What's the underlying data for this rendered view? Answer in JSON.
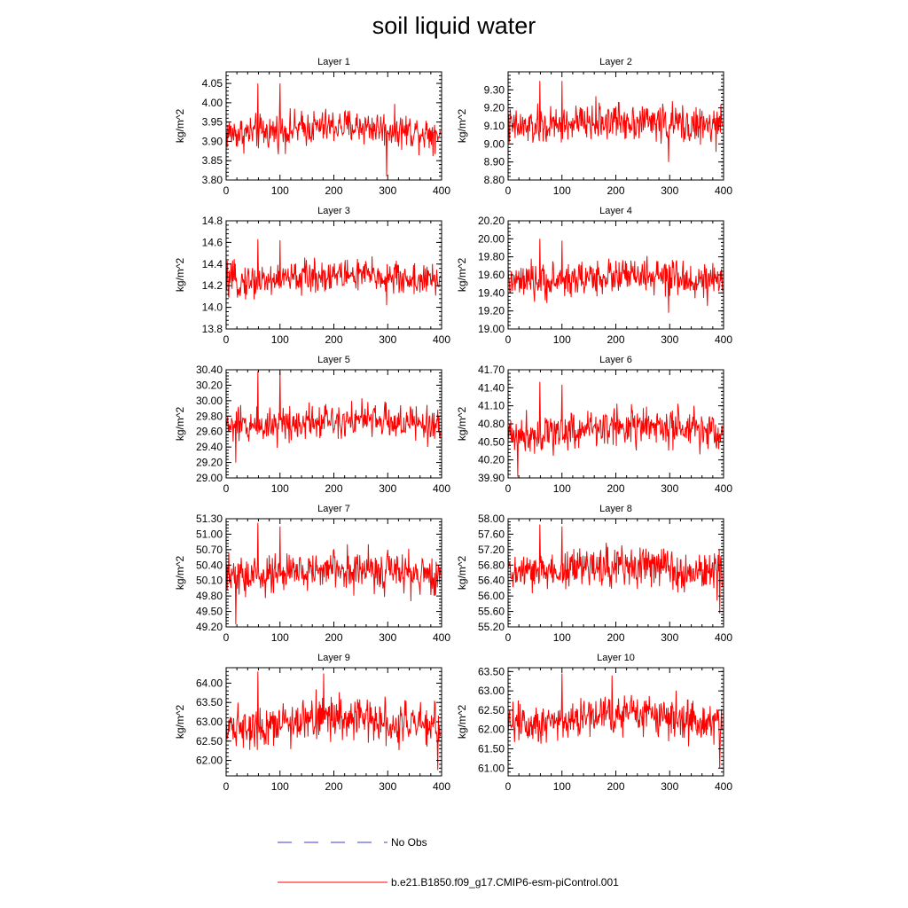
{
  "title": "soil liquid water",
  "colors": {
    "model_line": "#ff0000",
    "obs_line": "#3b3bd6",
    "axis": "#000000"
  },
  "legend": [
    {
      "label": "No Obs",
      "style": "dashed",
      "color": "#3b3bd6"
    },
    {
      "label": "b.e21.B1850.f09_g17.CMIP6-esm-piControl.001",
      "style": "solid",
      "color": "#ff0000"
    }
  ],
  "chart_data": [
    {
      "type": "line",
      "title": "Layer 1",
      "ylabel": "kg/m^2",
      "xlim": [
        0,
        400
      ],
      "xticks": [
        0,
        100,
        200,
        300,
        400
      ],
      "xtick_labels": [
        "0",
        "100",
        "200",
        "300",
        "400"
      ],
      "ylim": [
        3.8,
        4.08
      ],
      "yticks": [
        3.8,
        3.85,
        3.9,
        3.95,
        4.0,
        4.05
      ],
      "ytick_labels": [
        "3.80",
        "3.85",
        "3.90",
        "3.95",
        "4.00",
        "4.05"
      ],
      "series": [
        {
          "name": "b.e21.B1850.f09_g17.CMIP6-esm-piControl.001",
          "mean": 3.93,
          "noise": 0.035,
          "spikes": [
            [
              59,
              4.05
            ],
            [
              100,
              4.05
            ],
            [
              298,
              3.81
            ]
          ]
        }
      ]
    },
    {
      "type": "line",
      "title": "Layer 2",
      "ylabel": "kg/m^2",
      "xlim": [
        0,
        400
      ],
      "xticks": [
        0,
        100,
        200,
        300,
        400
      ],
      "xtick_labels": [
        "0",
        "100",
        "200",
        "300",
        "400"
      ],
      "ylim": [
        8.8,
        9.4
      ],
      "yticks": [
        8.8,
        8.9,
        9.0,
        9.1,
        9.2,
        9.3
      ],
      "ytick_labels": [
        "8.80",
        "8.90",
        "9.00",
        "9.10",
        "9.20",
        "9.30"
      ],
      "series": [
        {
          "name": "b.e21.B1850.f09_g17.CMIP6-esm-piControl.001",
          "mean": 9.11,
          "noise": 0.08,
          "spikes": [
            [
              59,
              9.35
            ],
            [
              100,
              9.35
            ],
            [
              298,
              8.9
            ]
          ]
        }
      ]
    },
    {
      "type": "line",
      "title": "Layer 3",
      "ylabel": "kg/m^2",
      "xlim": [
        0,
        400
      ],
      "xticks": [
        0,
        100,
        200,
        300,
        400
      ],
      "xtick_labels": [
        "0",
        "100",
        "200",
        "300",
        "400"
      ],
      "ylim": [
        13.8,
        14.8
      ],
      "yticks": [
        13.8,
        14.0,
        14.2,
        14.4,
        14.6,
        14.8
      ],
      "ytick_labels": [
        "13.8",
        "14.0",
        "14.2",
        "14.4",
        "14.6",
        "14.8"
      ],
      "series": [
        {
          "name": "b.e21.B1850.f09_g17.CMIP6-esm-piControl.001",
          "mean": 14.27,
          "noise": 0.12,
          "spikes": [
            [
              59,
              14.63
            ],
            [
              100,
              14.62
            ],
            [
              298,
              14.02
            ]
          ]
        }
      ]
    },
    {
      "type": "line",
      "title": "Layer 4",
      "ylabel": "kg/m^2",
      "xlim": [
        0,
        400
      ],
      "xticks": [
        0,
        100,
        200,
        300,
        400
      ],
      "xtick_labels": [
        "0",
        "100",
        "200",
        "300",
        "400"
      ],
      "ylim": [
        19.0,
        20.2
      ],
      "yticks": [
        19.0,
        19.2,
        19.4,
        19.6,
        19.8,
        20.0,
        20.2
      ],
      "ytick_labels": [
        "19.00",
        "19.20",
        "19.40",
        "19.60",
        "19.80",
        "20.00",
        "20.20"
      ],
      "series": [
        {
          "name": "b.e21.B1850.f09_g17.CMIP6-esm-piControl.001",
          "mean": 19.55,
          "noise": 0.15,
          "spikes": [
            [
              59,
              20.0
            ],
            [
              100,
              19.98
            ],
            [
              298,
              19.18
            ]
          ]
        }
      ]
    },
    {
      "type": "line",
      "title": "Layer 5",
      "ylabel": "kg/m^2",
      "xlim": [
        0,
        400
      ],
      "xticks": [
        0,
        100,
        200,
        300,
        400
      ],
      "xtick_labels": [
        "0",
        "100",
        "200",
        "300",
        "400"
      ],
      "ylim": [
        29.0,
        30.4
      ],
      "yticks": [
        29.0,
        29.2,
        29.4,
        29.6,
        29.8,
        30.0,
        30.2,
        30.4
      ],
      "ytick_labels": [
        "29.00",
        "29.20",
        "29.40",
        "29.60",
        "29.80",
        "30.00",
        "30.20",
        "30.40"
      ],
      "series": [
        {
          "name": "b.e21.B1850.f09_g17.CMIP6-esm-piControl.001",
          "mean": 29.72,
          "noise": 0.18,
          "spikes": [
            [
              59,
              30.38
            ],
            [
              100,
              30.38
            ],
            [
              18,
              29.2
            ]
          ]
        }
      ]
    },
    {
      "type": "line",
      "title": "Layer 6",
      "ylabel": "kg/m^2",
      "xlim": [
        0,
        400
      ],
      "xticks": [
        0,
        100,
        200,
        300,
        400
      ],
      "xtick_labels": [
        "0",
        "100",
        "200",
        "300",
        "400"
      ],
      "ylim": [
        39.9,
        41.7
      ],
      "yticks": [
        39.9,
        40.2,
        40.5,
        40.8,
        41.1,
        41.4,
        41.7
      ],
      "ytick_labels": [
        "39.90",
        "40.20",
        "40.50",
        "40.80",
        "41.10",
        "41.40",
        "41.70"
      ],
      "series": [
        {
          "name": "b.e21.B1850.f09_g17.CMIP6-esm-piControl.001",
          "mean": 40.7,
          "noise": 0.25,
          "spikes": [
            [
              59,
              41.5
            ],
            [
              100,
              41.45
            ],
            [
              18,
              39.92
            ]
          ]
        }
      ]
    },
    {
      "type": "line",
      "title": "Layer 7",
      "ylabel": "kg/m^2",
      "xlim": [
        0,
        400
      ],
      "xticks": [
        0,
        100,
        200,
        300,
        400
      ],
      "xtick_labels": [
        "0",
        "100",
        "200",
        "300",
        "400"
      ],
      "ylim": [
        49.2,
        51.3
      ],
      "yticks": [
        49.2,
        49.5,
        49.8,
        50.1,
        50.4,
        50.7,
        51.0,
        51.3
      ],
      "ytick_labels": [
        "49.20",
        "49.50",
        "49.80",
        "50.10",
        "50.40",
        "50.70",
        "51.00",
        "51.30"
      ],
      "series": [
        {
          "name": "b.e21.B1850.f09_g17.CMIP6-esm-piControl.001",
          "mean": 50.25,
          "noise": 0.3,
          "spikes": [
            [
              59,
              51.22
            ],
            [
              100,
              51.15
            ],
            [
              18,
              49.25
            ]
          ]
        }
      ]
    },
    {
      "type": "line",
      "title": "Layer 8",
      "ylabel": "kg/m^2",
      "xlim": [
        0,
        400
      ],
      "xticks": [
        0,
        100,
        200,
        300,
        400
      ],
      "xtick_labels": [
        "0",
        "100",
        "200",
        "300",
        "400"
      ],
      "ylim": [
        55.2,
        58.0
      ],
      "yticks": [
        55.2,
        55.6,
        56.0,
        56.4,
        56.8,
        57.2,
        57.6,
        58.0
      ],
      "ytick_labels": [
        "55.20",
        "55.60",
        "56.00",
        "56.40",
        "56.80",
        "57.20",
        "57.60",
        "58.00"
      ],
      "series": [
        {
          "name": "b.e21.B1850.f09_g17.CMIP6-esm-piControl.001",
          "mean": 56.7,
          "noise": 0.4,
          "spikes": [
            [
              59,
              57.85
            ],
            [
              100,
              57.8
            ],
            [
              393,
              55.55
            ]
          ]
        }
      ]
    },
    {
      "type": "line",
      "title": "Layer 9",
      "ylabel": "kg/m^2",
      "xlim": [
        0,
        400
      ],
      "xticks": [
        0,
        100,
        200,
        300,
        400
      ],
      "xtick_labels": [
        "0",
        "100",
        "200",
        "300",
        "400"
      ],
      "ylim": [
        61.6,
        64.4
      ],
      "yticks": [
        62.0,
        62.5,
        63.0,
        63.5,
        64.0
      ],
      "ytick_labels": [
        "62.00",
        "62.50",
        "63.00",
        "63.50",
        "64.00"
      ],
      "series": [
        {
          "name": "b.e21.B1850.f09_g17.CMIP6-esm-piControl.001",
          "mean": 63.0,
          "noise": 0.42,
          "spikes": [
            [
              59,
              64.3
            ],
            [
              181,
              64.25
            ],
            [
              393,
              61.75
            ]
          ]
        }
      ]
    },
    {
      "type": "line",
      "title": "Layer 10",
      "ylabel": "kg/m^2",
      "xlim": [
        0,
        400
      ],
      "xticks": [
        0,
        100,
        200,
        300,
        400
      ],
      "xtick_labels": [
        "0",
        "100",
        "200",
        "300",
        "400"
      ],
      "ylim": [
        60.8,
        63.6
      ],
      "yticks": [
        61.0,
        61.5,
        62.0,
        62.5,
        63.0,
        63.5
      ],
      "ytick_labels": [
        "61.00",
        "61.50",
        "62.00",
        "62.50",
        "63.00",
        "63.50"
      ],
      "series": [
        {
          "name": "b.e21.B1850.f09_g17.CMIP6-esm-piControl.001",
          "mean": 62.3,
          "noise": 0.42,
          "spikes": [
            [
              100,
              63.45
            ],
            [
              193,
              63.4
            ],
            [
              393,
              61.0
            ]
          ]
        }
      ]
    }
  ]
}
